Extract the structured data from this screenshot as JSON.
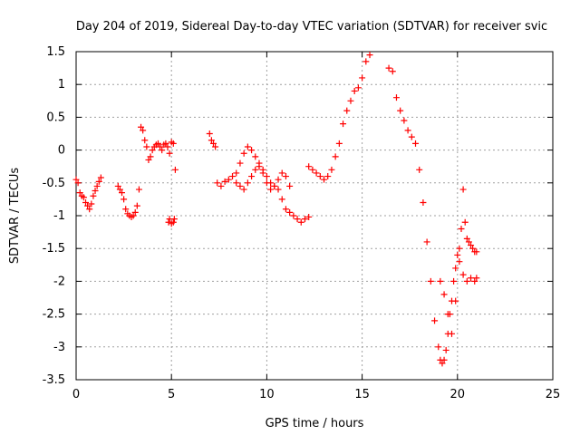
{
  "chart_data": {
    "type": "scatter",
    "title": "Day 204 of 2019, Sidereal Day-to-day VTEC variation (SDTVAR) for receiver svic",
    "xlabel": "GPS time / hours",
    "ylabel": "SDTVAR / TECUs",
    "xlim": [
      0,
      25
    ],
    "ylim": [
      -3.5,
      1.5
    ],
    "xticks": [
      0,
      5,
      10,
      15,
      20,
      25
    ],
    "xtick_labels": [
      "0",
      "5",
      "10",
      "15",
      "20",
      "25"
    ],
    "yticks": [
      -3.5,
      -3,
      -2.5,
      -2,
      -1.5,
      -1,
      -0.5,
      0,
      0.5,
      1,
      1.5
    ],
    "ytick_labels": [
      "-3.5",
      "-3",
      "-2.5",
      "-2",
      "-1.5",
      "-1",
      "-0.5",
      "0",
      "0.5",
      "1",
      "1.5"
    ],
    "grid": true,
    "marker": "+",
    "color": "#ff0000",
    "series": [
      {
        "x": [
          0.0,
          0.1,
          0.2,
          0.3,
          0.4,
          0.5,
          0.6,
          0.7,
          0.8,
          0.9,
          1.0,
          1.1,
          1.2,
          1.3,
          2.2,
          2.3,
          2.4,
          2.5,
          2.6,
          2.7,
          2.8,
          2.9,
          3.0,
          3.1,
          3.2,
          3.3,
          3.4,
          3.5,
          3.6,
          3.7,
          3.8,
          3.9,
          4.0,
          4.1,
          4.2,
          4.3,
          4.4,
          4.5,
          4.6,
          4.7,
          4.8,
          4.9,
          5.0,
          5.1,
          5.2,
          4.85,
          4.9,
          5.0,
          5.1,
          5.15,
          7.0,
          7.1,
          7.2,
          7.3,
          7.4,
          7.6,
          7.8,
          8.0,
          8.2,
          8.4,
          8.6,
          8.8,
          9.0,
          9.2,
          9.4,
          9.6,
          9.8,
          10.0,
          10.2,
          10.4,
          10.6,
          10.8,
          11.0,
          11.2,
          11.4,
          11.6,
          11.8,
          12.0,
          12.2,
          8.4,
          8.6,
          8.8,
          9.0,
          9.2,
          9.4,
          9.6,
          9.8,
          10.0,
          10.2,
          10.4,
          10.6,
          10.8,
          11.0,
          11.2,
          12.2,
          12.4,
          12.6,
          12.8,
          13.0,
          13.2,
          13.4,
          13.6,
          13.8,
          14.0,
          14.2,
          14.4,
          14.6,
          14.8,
          15.0,
          15.2,
          15.4,
          16.4,
          16.6,
          16.8,
          17.0,
          17.2,
          17.4,
          17.6,
          17.8,
          18.0,
          18.2,
          18.4,
          18.6,
          18.8,
          19.0,
          19.1,
          19.2,
          19.3,
          19.4,
          19.5,
          19.6,
          19.7,
          19.8,
          19.9,
          20.0,
          20.1,
          20.2,
          20.3,
          20.4,
          20.5,
          20.6,
          20.7,
          20.8,
          20.9,
          21.0,
          19.1,
          19.3,
          19.5,
          19.7,
          19.9,
          20.1,
          20.3,
          20.5,
          20.7,
          20.9,
          21.0
        ],
        "y": [
          -0.45,
          -0.5,
          -0.65,
          -0.7,
          -0.72,
          -0.8,
          -0.85,
          -0.9,
          -0.82,
          -0.7,
          -0.62,
          -0.55,
          -0.48,
          -0.42,
          -0.55,
          -0.6,
          -0.65,
          -0.75,
          -0.9,
          -0.97,
          -1.0,
          -1.02,
          -1.0,
          -0.95,
          -0.85,
          -0.6,
          0.35,
          0.3,
          0.15,
          0.05,
          -0.15,
          -0.1,
          0.0,
          0.05,
          0.08,
          0.1,
          0.05,
          0.0,
          0.08,
          0.1,
          0.05,
          -0.05,
          0.12,
          0.1,
          -0.3,
          -1.1,
          -1.05,
          -1.12,
          -1.1,
          -1.05,
          0.25,
          0.15,
          0.1,
          0.05,
          -0.5,
          -0.55,
          -0.48,
          -0.45,
          -0.4,
          -0.35,
          -0.2,
          -0.05,
          0.05,
          0.0,
          -0.1,
          -0.2,
          -0.3,
          -0.4,
          -0.5,
          -0.55,
          -0.6,
          -0.75,
          -0.9,
          -0.95,
          -1.0,
          -1.05,
          -1.1,
          -1.05,
          -1.02,
          -0.5,
          -0.55,
          -0.6,
          -0.5,
          -0.4,
          -0.3,
          -0.25,
          -0.35,
          -0.5,
          -0.6,
          -0.55,
          -0.45,
          -0.35,
          -0.4,
          -0.55,
          -0.25,
          -0.3,
          -0.35,
          -0.4,
          -0.45,
          -0.4,
          -0.3,
          -0.1,
          0.1,
          0.4,
          0.6,
          0.75,
          0.9,
          0.95,
          1.1,
          1.35,
          1.45,
          1.25,
          1.2,
          0.8,
          0.6,
          0.45,
          0.3,
          0.2,
          0.1,
          -0.3,
          -0.8,
          -1.4,
          -2.0,
          -2.6,
          -3.0,
          -3.2,
          -3.25,
          -3.2,
          -3.05,
          -2.8,
          -2.5,
          -2.3,
          -2.0,
          -1.8,
          -1.6,
          -1.5,
          -1.2,
          -0.6,
          -1.1,
          -1.35,
          -1.4,
          -1.45,
          -1.5,
          -1.55,
          -1.55,
          -2.0,
          -2.2,
          -2.5,
          -2.8,
          -2.3,
          -1.7,
          -1.9,
          -2.0,
          -1.95,
          -2.0,
          -1.95
        ]
      }
    ]
  }
}
